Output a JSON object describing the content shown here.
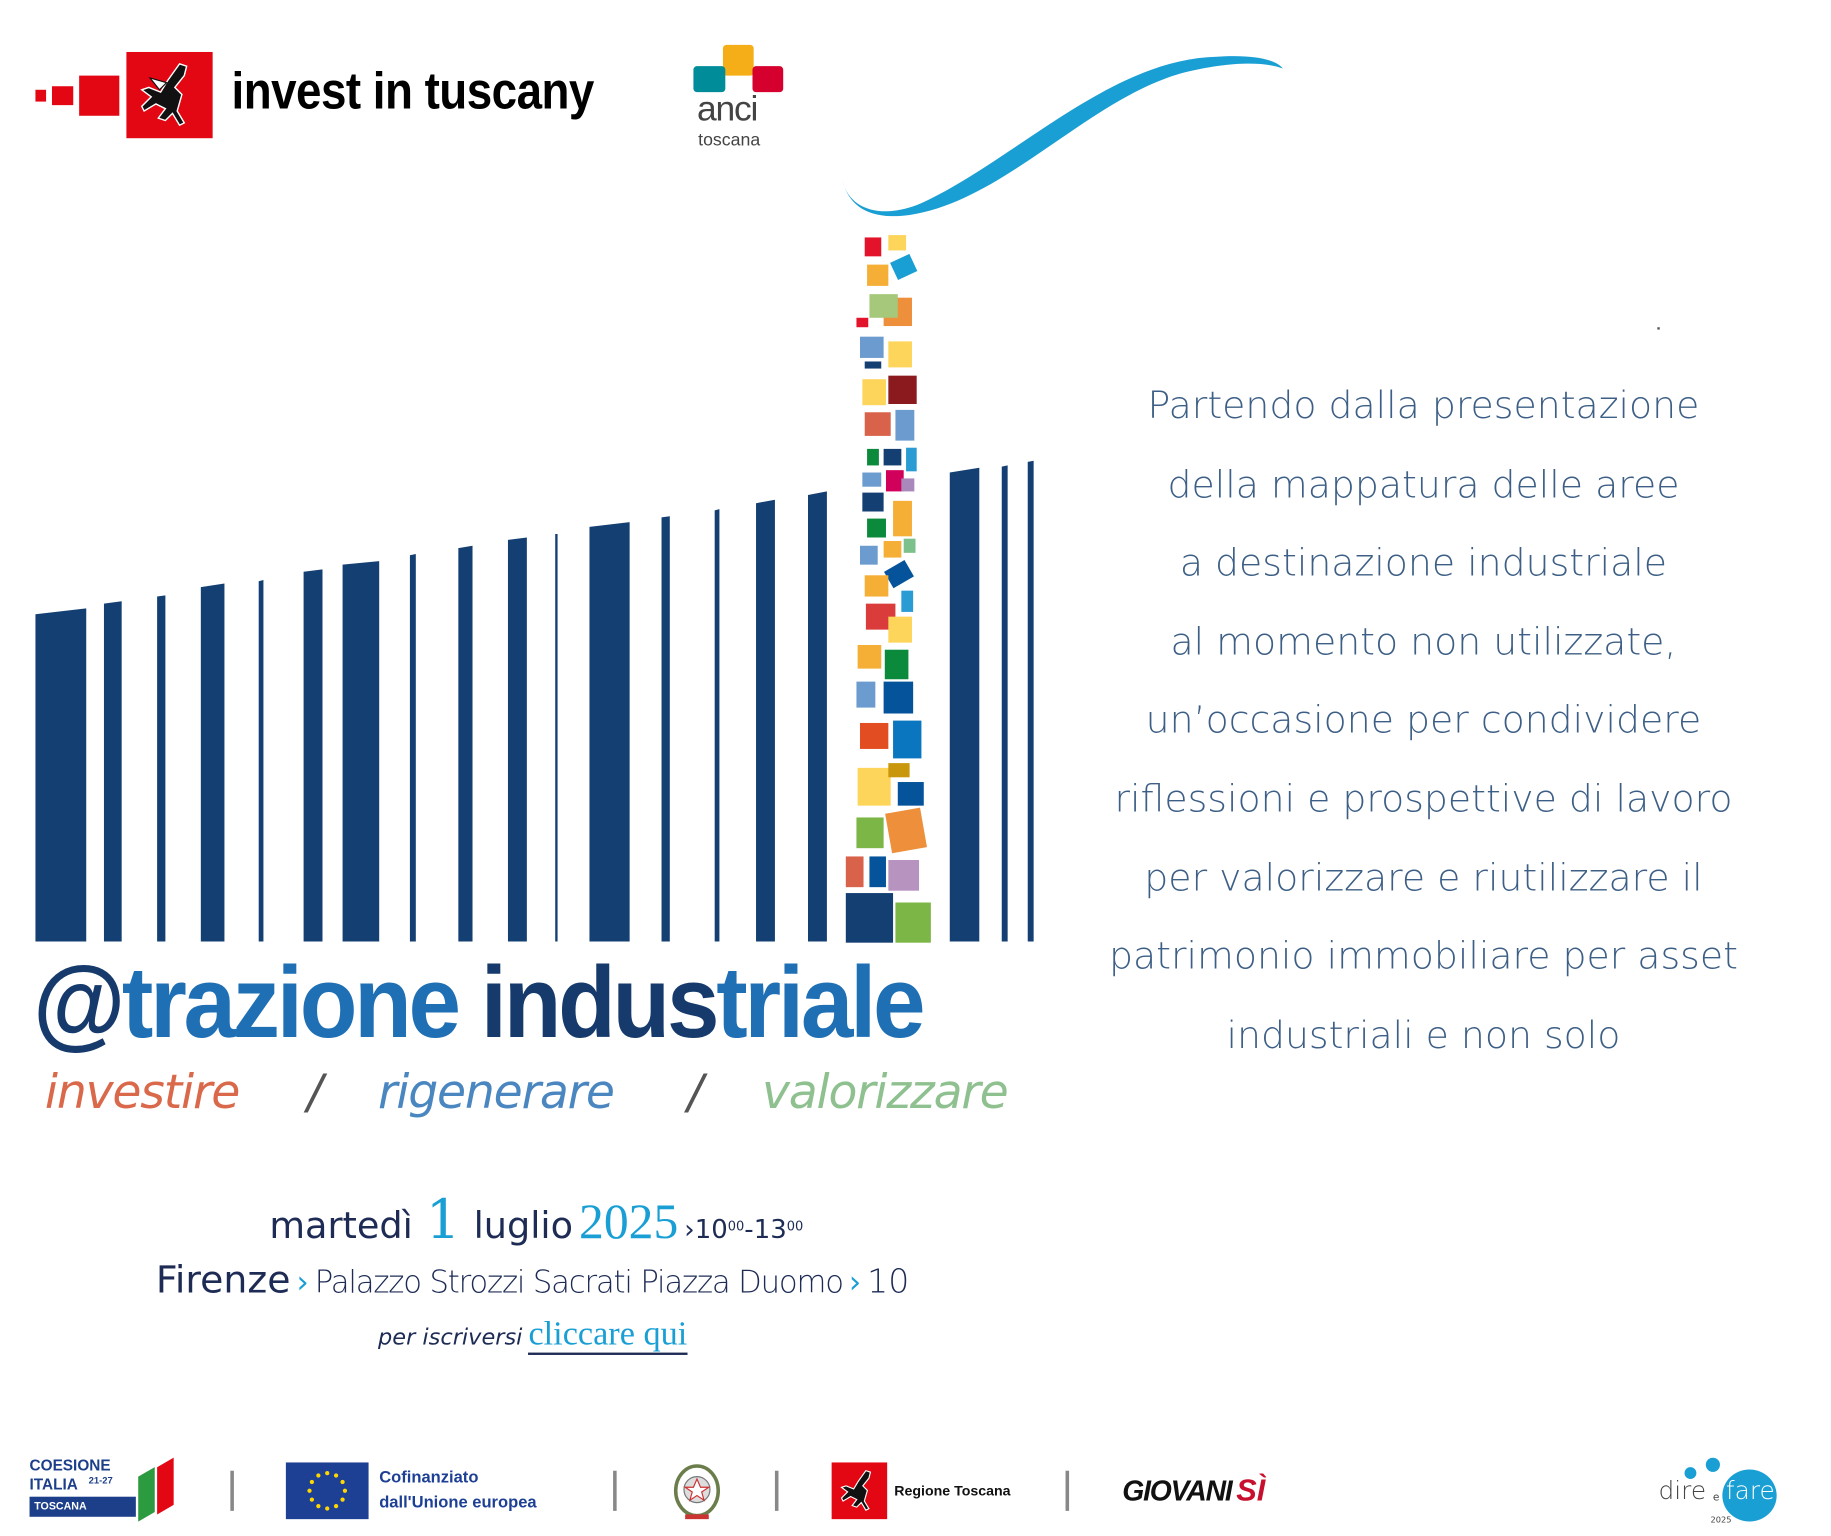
{
  "header": {
    "brand": "invest in tuscany",
    "partner_logo_main": "anci",
    "partner_logo_sub": "toscana"
  },
  "event": {
    "title_at": "@",
    "title_part1": "trazione",
    "title_part2": "indus",
    "title_part3": "triale",
    "tagline": [
      "investire",
      "/",
      "rigenerare",
      "/",
      "valorizzare"
    ],
    "description": [
      "Partendo dalla presentazione",
      "della mappatura delle aree",
      "a destinazione industriale",
      "al momento non utilizzate,",
      "un’occasione per condividere",
      "riflessioni e prospettive di lavoro",
      "per valorizzare e riutilizzare il",
      "patrimonio immobiliare per asset",
      "industriali e non solo"
    ],
    "weekday": "martedì",
    "day": "1",
    "month": "luglio",
    "year": "2025",
    "time_start": "10",
    "time_start_min": "00",
    "time_sep": "-",
    "time_end": "13",
    "time_end_min": "00",
    "city": "Firenze",
    "venue": "Palazzo Strozzi Sacrati Piazza Duomo",
    "number": "10",
    "register_prefix": "per iscriversi",
    "register_link": "cliccare qui"
  },
  "footer": {
    "coesione_line1": "COESIONE",
    "coesione_line2": "ITALIA",
    "coesione_years": "21-27",
    "coesione_region": "TOSCANA",
    "eu_line1": "Cofinanziato",
    "eu_line2": "dall'Unione europea",
    "regione": "Regione Toscana",
    "giovani": "GIOVANI",
    "giovani_si": "SÌ",
    "dire": "dire",
    "e": "e",
    "fare": "fare",
    "fare_year": "2025"
  },
  "colors": {
    "navy": "#163a6b",
    "blue": "#1f6fb5",
    "cyan": "#1a9fd4",
    "red": "#e30613",
    "investire": "#d9694a",
    "rigenerare": "#4a86c0",
    "valorizzare": "#8fc08f"
  }
}
